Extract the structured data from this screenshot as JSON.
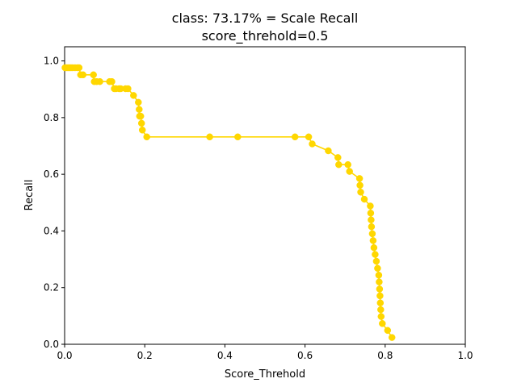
{
  "chart_data": {
    "type": "line",
    "title": "class: 73.17% = Scale Recall",
    "subtitle": "score_threhold=0.5",
    "xlabel": "Score_Threhold",
    "ylabel": "Recall",
    "xlim": [
      0.0,
      1.0
    ],
    "ylim": [
      0.0,
      1.05
    ],
    "xticks": [
      "0.0",
      "0.2",
      "0.4",
      "0.6",
      "0.8",
      "1.0"
    ],
    "yticks": [
      "0.0",
      "0.2",
      "0.4",
      "0.6",
      "0.8",
      "1.0"
    ],
    "grid": false,
    "line_color": "#ffd700",
    "series": [
      {
        "x": [
          0.001,
          0.004,
          0.008,
          0.012,
          0.016,
          0.02,
          0.026,
          0.032,
          0.036,
          0.04,
          0.046,
          0.072,
          0.074,
          0.08,
          0.088,
          0.112,
          0.118,
          0.124,
          0.128,
          0.136,
          0.14,
          0.152,
          0.158,
          0.172,
          0.184,
          0.186,
          0.187,
          0.19,
          0.192,
          0.194,
          0.205,
          0.362,
          0.432,
          0.575,
          0.609,
          0.618,
          0.658,
          0.682,
          0.684,
          0.707,
          0.711,
          0.736,
          0.737,
          0.739,
          0.748,
          0.763,
          0.764,
          0.765,
          0.766,
          0.768,
          0.77,
          0.772,
          0.775,
          0.778,
          0.781,
          0.784,
          0.785,
          0.786,
          0.787,
          0.788,
          0.789,
          0.79,
          0.793,
          0.806,
          0.817
        ],
        "values": [
          0.976,
          0.976,
          0.976,
          0.976,
          0.976,
          0.976,
          0.976,
          0.976,
          0.976,
          0.951,
          0.951,
          0.951,
          0.927,
          0.927,
          0.927,
          0.927,
          0.927,
          0.902,
          0.902,
          0.902,
          0.902,
          0.902,
          0.902,
          0.878,
          0.854,
          0.829,
          0.805,
          0.805,
          0.78,
          0.756,
          0.732,
          0.732,
          0.732,
          0.732,
          0.732,
          0.707,
          0.683,
          0.659,
          0.634,
          0.634,
          0.61,
          0.585,
          0.561,
          0.537,
          0.512,
          0.488,
          0.463,
          0.439,
          0.415,
          0.39,
          0.366,
          0.341,
          0.317,
          0.293,
          0.268,
          0.244,
          0.22,
          0.195,
          0.171,
          0.146,
          0.122,
          0.098,
          0.073,
          0.049,
          0.024
        ]
      }
    ]
  }
}
